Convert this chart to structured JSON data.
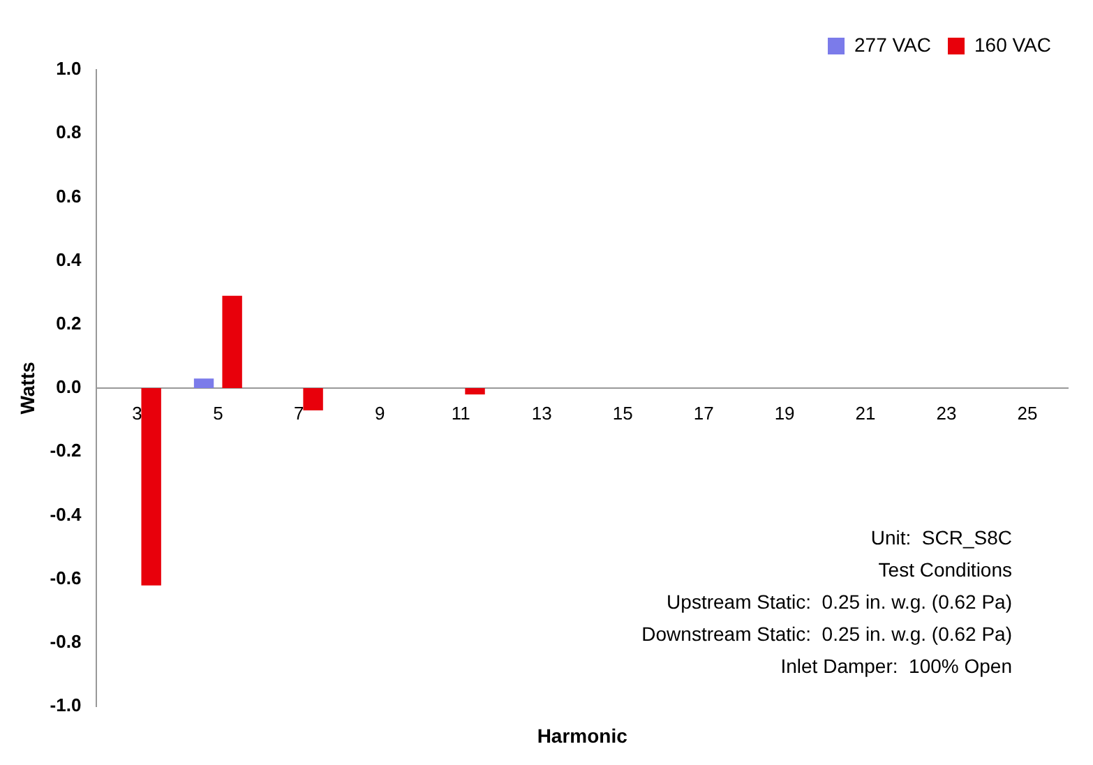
{
  "chart_data": {
    "type": "bar",
    "xlabel": "Harmonic",
    "ylabel": "Watts",
    "categories": [
      "3",
      "5",
      "7",
      "9",
      "11",
      "13",
      "15",
      "17",
      "19",
      "21",
      "23",
      "25"
    ],
    "series": [
      {
        "name": "277 VAC",
        "color": "#7b7bea",
        "values": [
          0,
          0.03,
          0,
          0,
          0,
          0,
          0,
          0,
          0,
          0,
          0,
          0
        ]
      },
      {
        "name": "160 VAC",
        "color": "#e8000b",
        "values": [
          -0.62,
          0.29,
          -0.07,
          0,
          -0.02,
          0,
          0,
          0,
          0,
          0,
          0,
          0
        ]
      }
    ],
    "ylim": [
      -1,
      1
    ],
    "yticks": [
      {
        "value": -1,
        "label": "-1.0"
      },
      -0.8,
      -0.6,
      -0.4,
      -0.2,
      {
        "value": 0,
        "label": "0.0"
      },
      0.2,
      0.4,
      0.6,
      0.8,
      {
        "value": 1,
        "label": "1.0"
      }
    ],
    "grid": false,
    "legend": "top right",
    "annotations": [
      "Unit:  SCR_S8C",
      "Test Conditions",
      "Upstream Static:  0.25 in. w.g. (0.62 Pa)",
      "Downstream Static:  0.25 in. w.g. (0.62 Pa)",
      "Inlet Damper:  100% Open"
    ]
  }
}
